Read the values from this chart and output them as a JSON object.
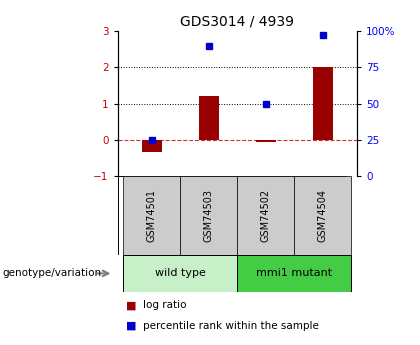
{
  "title": "GDS3014 / 4939",
  "samples": [
    "GSM74501",
    "GSM74503",
    "GSM74502",
    "GSM74504"
  ],
  "log_ratios": [
    -0.35,
    1.2,
    -0.05,
    2.0
  ],
  "percentile_ranks": [
    25,
    90,
    50,
    97
  ],
  "ylim_left": [
    -1,
    3
  ],
  "ylim_right": [
    0,
    100
  ],
  "yticks_left": [
    -1,
    0,
    1,
    2,
    3
  ],
  "yticks_right": [
    0,
    25,
    50,
    75,
    100
  ],
  "ytick_labels_right": [
    "0",
    "25",
    "50",
    "75",
    "100%"
  ],
  "hlines_dotted": [
    1,
    2
  ],
  "hline_dashed": 0,
  "bar_color": "#990000",
  "square_color": "#0000cc",
  "groups": [
    {
      "label": "wild type",
      "color": "#c8f0c8"
    },
    {
      "label": "mmi1 mutant",
      "color": "#44cc44"
    }
  ],
  "sample_box_color": "#cccccc",
  "genotype_label": "genotype/variation",
  "legend_bar_label": "log ratio",
  "legend_sq_label": "percentile rank within the sample",
  "bar_width": 0.35,
  "title_fontsize": 10,
  "tick_fontsize": 7.5,
  "label_fontsize": 8
}
